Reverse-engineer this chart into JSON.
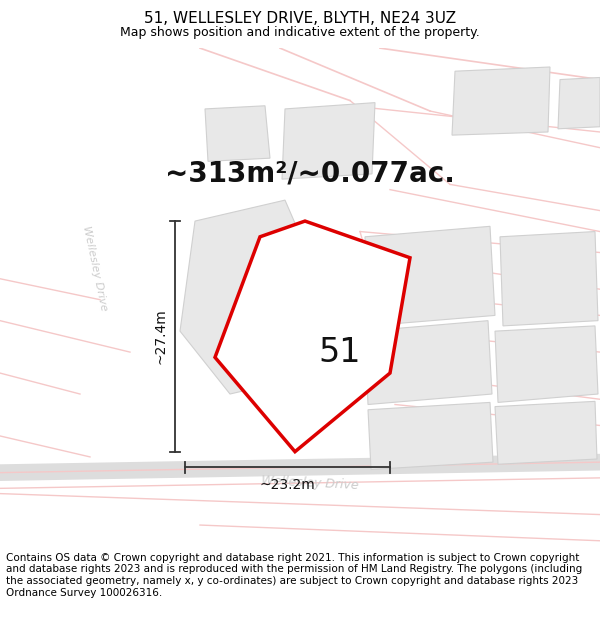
{
  "title": "51, WELLESLEY DRIVE, BLYTH, NE24 3UZ",
  "subtitle": "Map shows position and indicative extent of the property.",
  "area_text": "~313m²/~0.077ac.",
  "label_51": "51",
  "dim_height": "~27.4m",
  "dim_width": "~23.2m",
  "footer": "Contains OS data © Crown copyright and database right 2021. This information is subject to Crown copyright and database rights 2023 and is reproduced with the permission of HM Land Registry. The polygons (including the associated geometry, namely x, y co-ordinates) are subject to Crown copyright and database rights 2023 Ordnance Survey 100026316.",
  "bg_color": "#ffffff",
  "map_bg": "#ffffff",
  "road_color": "#f5c8c8",
  "building_fill": "#e8e8e8",
  "building_edge": "#d0d0d0",
  "plot_fill": "#ffffff",
  "plot_edge": "#dd0000",
  "dim_color": "#333333",
  "road_label_color": "#bbbbbb",
  "title_fontsize": 11,
  "subtitle_fontsize": 9,
  "area_fontsize": 20,
  "label_fontsize": 24,
  "dim_fontsize": 10,
  "footer_fontsize": 7.5,
  "road_lw": 1.5,
  "plot_lw": 2.5,
  "wellesley_label_color": "#cccccc"
}
